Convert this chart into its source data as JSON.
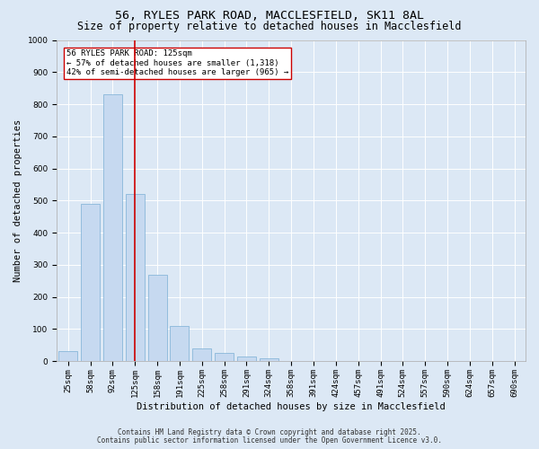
{
  "title_line1": "56, RYLES PARK ROAD, MACCLESFIELD, SK11 8AL",
  "title_line2": "Size of property relative to detached houses in Macclesfield",
  "xlabel": "Distribution of detached houses by size in Macclesfield",
  "ylabel": "Number of detached properties",
  "categories": [
    "25sqm",
    "58sqm",
    "92sqm",
    "125sqm",
    "158sqm",
    "191sqm",
    "225sqm",
    "258sqm",
    "291sqm",
    "324sqm",
    "358sqm",
    "391sqm",
    "424sqm",
    "457sqm",
    "491sqm",
    "524sqm",
    "557sqm",
    "590sqm",
    "624sqm",
    "657sqm",
    "690sqm"
  ],
  "values": [
    30,
    490,
    830,
    520,
    270,
    110,
    40,
    25,
    15,
    8,
    0,
    0,
    0,
    0,
    0,
    0,
    0,
    0,
    0,
    0,
    0
  ],
  "bar_color": "#c6d9f0",
  "bar_edge_color": "#7bafd4",
  "vline_x_index": 3,
  "vline_color": "#cc0000",
  "annotation_text": "56 RYLES PARK ROAD: 125sqm\n← 57% of detached houses are smaller (1,318)\n42% of semi-detached houses are larger (965) →",
  "annotation_box_color": "#ffffff",
  "annotation_box_edge": "#cc0000",
  "ylim": [
    0,
    1000
  ],
  "yticks": [
    0,
    100,
    200,
    300,
    400,
    500,
    600,
    700,
    800,
    900,
    1000
  ],
  "background_color": "#dce8f5",
  "plot_bg_color": "#dce8f5",
  "footer_line1": "Contains HM Land Registry data © Crown copyright and database right 2025.",
  "footer_line2": "Contains public sector information licensed under the Open Government Licence v3.0.",
  "title_fontsize": 9.5,
  "subtitle_fontsize": 8.5,
  "axis_label_fontsize": 7.5,
  "tick_fontsize": 6.5,
  "annotation_fontsize": 6.5,
  "footer_fontsize": 5.5
}
